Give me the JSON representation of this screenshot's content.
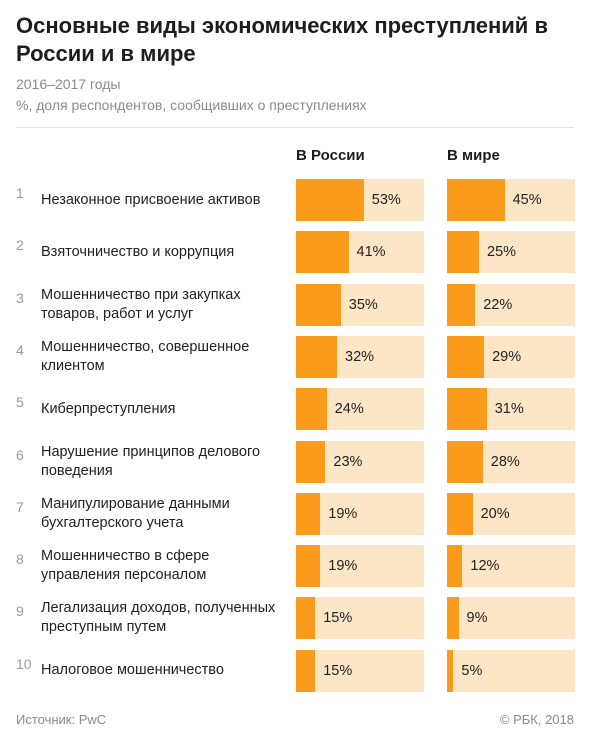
{
  "title": "Основные виды экономических преступлений в России и в мире",
  "subtitle_period": "2016–2017 годы",
  "subtitle_unit": "%, доля респондентов, сообщивших о преступлениях",
  "colors": {
    "bar": "#fb9b1c",
    "bar_bg": "#fde6c6"
  },
  "chart_data": {
    "type": "bar",
    "orientation": "horizontal",
    "xlim": [
      0,
      100
    ],
    "series": [
      {
        "name": "В России",
        "values": [
          53,
          41,
          35,
          32,
          24,
          23,
          19,
          19,
          15,
          15
        ]
      },
      {
        "name": "В мире",
        "values": [
          45,
          25,
          22,
          29,
          31,
          28,
          20,
          12,
          9,
          5
        ]
      }
    ],
    "categories": [
      {
        "num": "1",
        "label": "Незаконное присвоение активов",
        "ru": 53,
        "ru_label": "53%",
        "world": 45,
        "world_label": "45%"
      },
      {
        "num": "2",
        "label": "Взяточничество и коррупция",
        "ru": 41,
        "ru_label": "41%",
        "world": 25,
        "world_label": "25%"
      },
      {
        "num": "3",
        "label": "Мошенничество при закупках товаров, работ и услуг",
        "ru": 35,
        "ru_label": "35%",
        "world": 22,
        "world_label": "22%"
      },
      {
        "num": "4",
        "label": "Мошенничество, совершенное клиентом",
        "ru": 32,
        "ru_label": "32%",
        "world": 29,
        "world_label": "29%"
      },
      {
        "num": "5",
        "label": "Киберпреступления",
        "ru": 24,
        "ru_label": "24%",
        "world": 31,
        "world_label": "31%"
      },
      {
        "num": "6",
        "label": "Нарушение принципов делового поведения",
        "ru": 23,
        "ru_label": "23%",
        "world": 28,
        "world_label": "28%"
      },
      {
        "num": "7",
        "label": "Манипулирование данными бухгалтерского учета",
        "ru": 19,
        "ru_label": "19%",
        "world": 20,
        "world_label": "20%"
      },
      {
        "num": "8",
        "label": "Мошенничество в сфере управления персоналом",
        "ru": 19,
        "ru_label": "19%",
        "world": 12,
        "world_label": "12%"
      },
      {
        "num": "9",
        "label": "Легализация доходов, полученных преступным путем",
        "ru": 15,
        "ru_label": "15%",
        "world": 9,
        "world_label": "9%"
      },
      {
        "num": "10",
        "label": "Налоговое мошенничество",
        "ru": 15,
        "ru_label": "15%",
        "world": 5,
        "world_label": "5%"
      }
    ]
  },
  "footer": {
    "source": "Источник: PwC",
    "copyright": "© РБК, 2018"
  }
}
